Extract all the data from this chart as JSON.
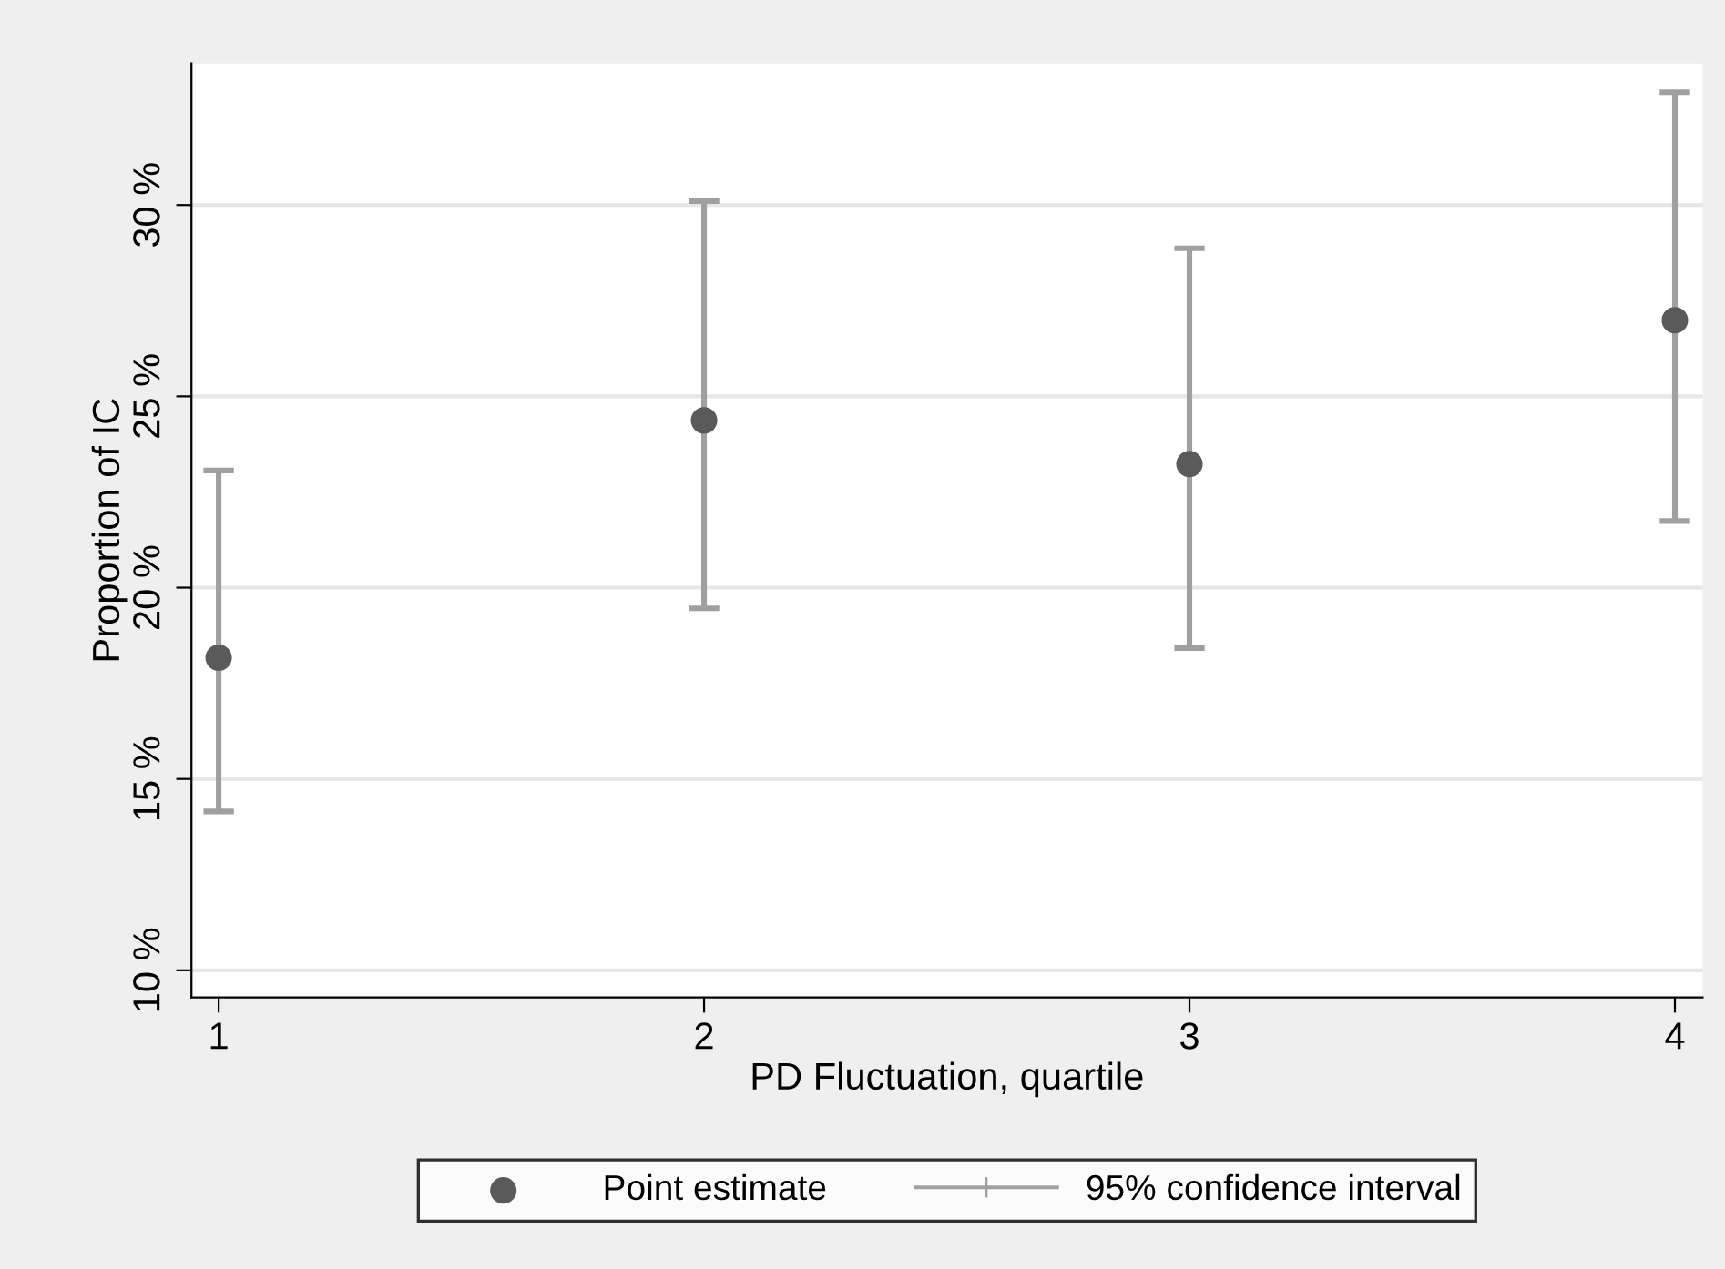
{
  "chart_data": {
    "type": "scatter",
    "xlabel": "PD Fluctuation, quartile",
    "ylabel": "Proportion of IC",
    "x": [
      1,
      2,
      3,
      4
    ],
    "series": [
      {
        "name": "Point estimate",
        "color": "#5a5a5a",
        "values": [
          18.17,
          24.37,
          23.23,
          26.99
        ],
        "errors": [
          [
            14.15,
            23.06
          ],
          [
            19.46,
            30.1
          ],
          [
            18.42,
            28.87
          ],
          [
            21.74,
            32.95
          ]
        ]
      }
    ],
    "annotations": [
      "95% confidence interval"
    ],
    "xlim": [
      0.944,
      4.057
    ],
    "xticks": [
      1,
      2,
      3,
      4
    ],
    "ylim": [
      9.29,
      33.7
    ],
    "yticks": [
      {
        "value": 10,
        "label": "10 %"
      },
      {
        "value": 15,
        "label": "15 %"
      },
      {
        "value": 20,
        "label": "20 %"
      },
      {
        "value": 25,
        "label": "25 %"
      },
      {
        "value": 30,
        "label": "30 %"
      }
    ],
    "grid": "y",
    "legend": "bottom",
    "marker": "circle"
  }
}
